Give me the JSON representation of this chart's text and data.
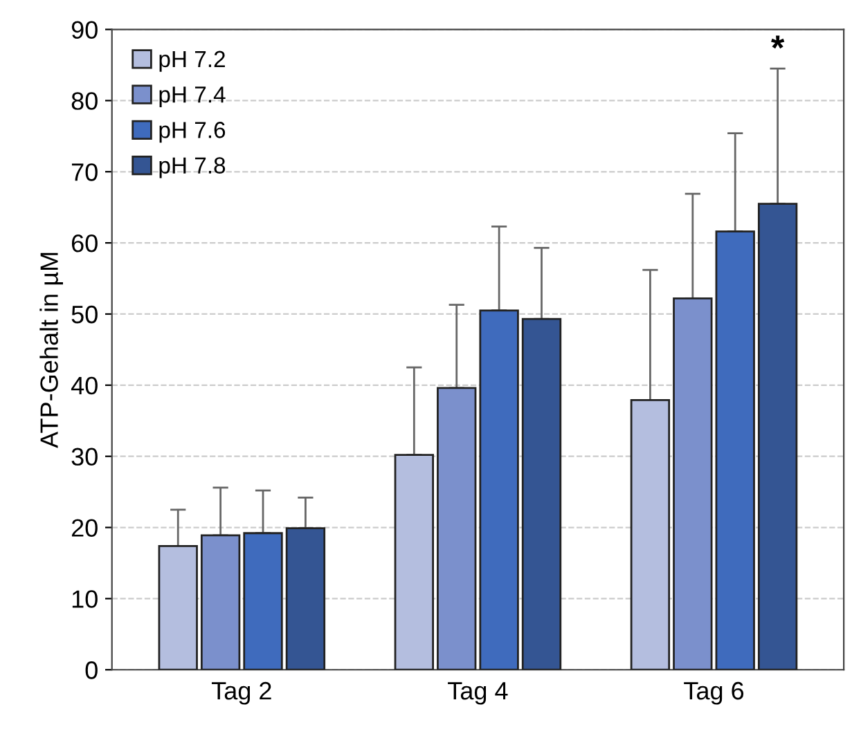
{
  "chart_data": {
    "type": "bar",
    "ylabel": "ATP-Gehalt in µM",
    "categories": [
      "Tag 2",
      "Tag 4",
      "Tag 6"
    ],
    "series": [
      {
        "name": "pH 7.2",
        "color": "#b4bedf",
        "values": [
          17.4,
          30.2,
          37.9
        ],
        "errors": [
          [
            17.4,
            22.5
          ],
          [
            30.2,
            42.5
          ],
          [
            37.9,
            56.2
          ]
        ]
      },
      {
        "name": "pH 7.4",
        "color": "#7b90cc",
        "values": [
          18.9,
          39.6,
          52.2
        ],
        "errors": [
          [
            18.9,
            25.6
          ],
          [
            39.6,
            51.3
          ],
          [
            52.2,
            66.9
          ]
        ]
      },
      {
        "name": "pH 7.6",
        "color": "#3f6bbd",
        "values": [
          19.2,
          50.5,
          61.6
        ],
        "errors": [
          [
            19.2,
            25.2
          ],
          [
            50.5,
            62.3
          ],
          [
            61.6,
            75.4
          ]
        ]
      },
      {
        "name": "pH 7.8",
        "color": "#345593",
        "values": [
          19.9,
          49.3,
          65.5
        ],
        "errors": [
          [
            19.9,
            24.2
          ],
          [
            49.3,
            59.3
          ],
          [
            65.5,
            84.5
          ]
        ]
      }
    ],
    "annotations": [
      "*"
    ],
    "ylim": [
      0,
      90
    ],
    "yticks": [
      0,
      10,
      20,
      30,
      40,
      50,
      60,
      70,
      80,
      90
    ],
    "grid": "y",
    "legend": "top left"
  }
}
